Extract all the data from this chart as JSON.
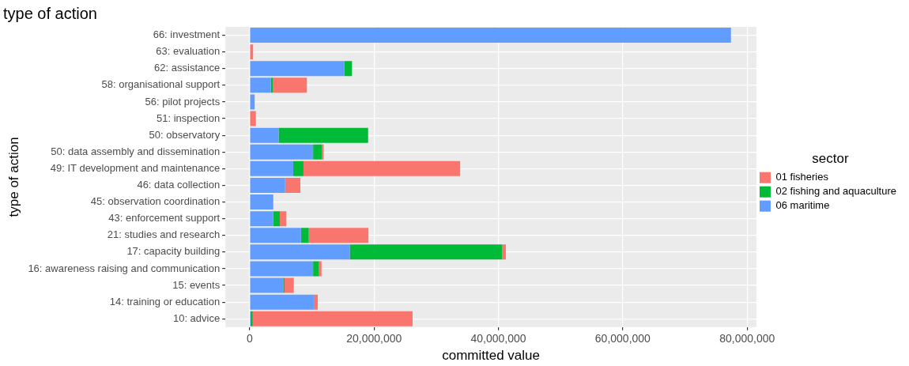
{
  "chart_data": {
    "type": "bar",
    "orientation": "horizontal",
    "stacked": true,
    "title": "type of action",
    "xlabel": "committed value",
    "ylabel": "type of action",
    "legend_title": "sector",
    "legend": "right",
    "grid": true,
    "categories": [
      "66: investment",
      "63: evaluation",
      "62: assistance",
      "58: organisational support",
      "56: pilot projects",
      "51: inspection",
      "50: observatory",
      "50: data assembly and dissemination",
      "49: IT development and maintenance",
      "46: data collection",
      "45: observation coordination",
      "43: enforcement support",
      "21: studies and research",
      "17: capacity building",
      "16: awareness raising and communication",
      "15: events",
      "14: training or education",
      "10: advice"
    ],
    "series": [
      {
        "name": "06 maritime",
        "color": "#619cff",
        "values": [
          77400000,
          null,
          15250000,
          3400000,
          800000,
          null,
          4650000,
          10200000,
          7000000,
          5700000,
          3800000,
          3800000,
          8250000,
          16100000,
          10200000,
          5400000,
          10300000,
          150000
        ]
      },
      {
        "name": "02 fishing and aquaculture",
        "color": "#00ba38",
        "values": [
          null,
          null,
          1200000,
          300000,
          null,
          null,
          14400000,
          1400000,
          1650000,
          null,
          null,
          1050000,
          1250000,
          24500000,
          950000,
          200000,
          null,
          350000
        ]
      },
      {
        "name": "01 fisheries",
        "color": "#f8766d",
        "values": [
          null,
          550000,
          null,
          5500000,
          null,
          1000000,
          null,
          300000,
          25200000,
          2450000,
          null,
          1050000,
          9600000,
          600000,
          400000,
          1500000,
          650000,
          25700000
        ]
      }
    ],
    "xlim": [
      -3900000,
      81500000
    ],
    "xticks": [
      {
        "value": 0,
        "label": "0"
      },
      {
        "value": 20000000,
        "label": "20,000,000"
      },
      {
        "value": 40000000,
        "label": "40,000,000"
      },
      {
        "value": 60000000,
        "label": "60,000,000"
      },
      {
        "value": 80000000,
        "label": "80,000,000"
      }
    ]
  }
}
